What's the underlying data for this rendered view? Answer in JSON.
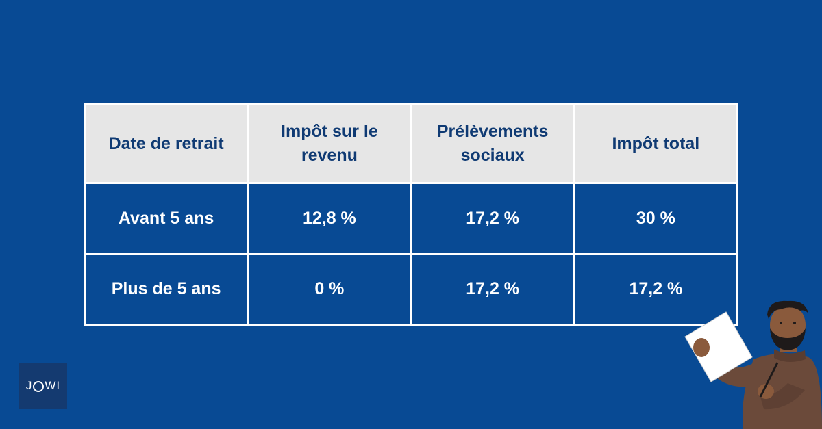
{
  "table": {
    "headers": [
      "Date de retrait",
      "Impôt sur le revenu",
      "Prélèvements sociaux",
      "Impôt total"
    ],
    "rows": [
      [
        "Avant 5 ans",
        "12,8 %",
        "17,2 %",
        "30 %"
      ],
      [
        "Plus de 5 ans",
        "0 %",
        "17,2 %",
        "17,2 %"
      ]
    ]
  },
  "logo": {
    "text_left": "J",
    "text_right": "WI"
  },
  "colors": {
    "background": "#084a94",
    "header_bg": "#e6e6e6",
    "header_text": "#0f3a73",
    "cell_text": "#ffffff"
  }
}
